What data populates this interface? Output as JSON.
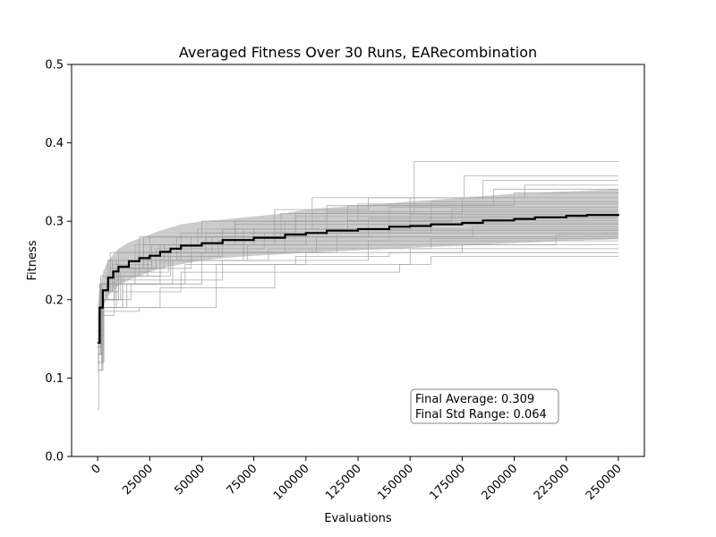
{
  "chart_data": {
    "type": "line",
    "title": "Averaged Fitness Over 30 Runs, EARecombination",
    "xlabel": "Evaluations",
    "ylabel": "Fitness",
    "xlim": [
      -12500,
      262500
    ],
    "ylim": [
      0,
      0.5
    ],
    "xticks": [
      0,
      25000,
      50000,
      75000,
      100000,
      125000,
      150000,
      175000,
      200000,
      225000,
      250000
    ],
    "xtick_labels": [
      "0",
      "25000",
      "50000",
      "75000",
      "100000",
      "125000",
      "150000",
      "175000",
      "200000",
      "225000",
      "250000"
    ],
    "yticks": [
      0.0,
      0.1,
      0.2,
      0.3,
      0.4,
      0.5
    ],
    "ytick_labels": [
      "0.0",
      "0.1",
      "0.2",
      "0.3",
      "0.4",
      "0.5"
    ],
    "xtick_rotation": 45,
    "grid": false,
    "legend": false,
    "average": {
      "x": [
        0,
        1000,
        2500,
        5000,
        7500,
        10000,
        15000,
        20000,
        25000,
        30000,
        35000,
        40000,
        50000,
        60000,
        75000,
        90000,
        100000,
        110000,
        125000,
        140000,
        150000,
        160000,
        175000,
        185000,
        200000,
        210000,
        225000,
        235000,
        250000
      ],
      "y": [
        0.145,
        0.19,
        0.212,
        0.228,
        0.236,
        0.242,
        0.249,
        0.253,
        0.256,
        0.261,
        0.265,
        0.269,
        0.272,
        0.276,
        0.279,
        0.283,
        0.285,
        0.288,
        0.29,
        0.293,
        0.294,
        0.296,
        0.298,
        0.301,
        0.303,
        0.305,
        0.307,
        0.308,
        0.309
      ],
      "color": "#000000"
    },
    "std_band": {
      "x": [
        0,
        1000,
        2500,
        5000,
        10000,
        15000,
        20000,
        25000,
        30000,
        40000,
        50000,
        60000,
        75000,
        90000,
        100000,
        125000,
        150000,
        175000,
        200000,
        225000,
        250000
      ],
      "upper": [
        0.19,
        0.215,
        0.235,
        0.25,
        0.265,
        0.273,
        0.278,
        0.283,
        0.288,
        0.296,
        0.3,
        0.302,
        0.306,
        0.31,
        0.315,
        0.32,
        0.325,
        0.33,
        0.335,
        0.338,
        0.341
      ],
      "lower": [
        0.1,
        0.165,
        0.19,
        0.205,
        0.218,
        0.225,
        0.23,
        0.235,
        0.24,
        0.245,
        0.25,
        0.253,
        0.256,
        0.258,
        0.26,
        0.263,
        0.266,
        0.269,
        0.272,
        0.275,
        0.277
      ],
      "color": "#808080"
    },
    "runs": [
      {
        "final": 0.376,
        "steps": [
          [
            0,
            0.14
          ],
          [
            1500,
            0.21
          ],
          [
            9000,
            0.24
          ],
          [
            26000,
            0.26
          ],
          [
            52000,
            0.28
          ],
          [
            88000,
            0.31
          ],
          [
            152000,
            0.376
          ]
        ]
      },
      {
        "final": 0.358,
        "steps": [
          [
            0,
            0.12
          ],
          [
            2000,
            0.2
          ],
          [
            8000,
            0.235
          ],
          [
            24000,
            0.255
          ],
          [
            60000,
            0.29
          ],
          [
            103000,
            0.33
          ],
          [
            176000,
            0.358
          ]
        ]
      },
      {
        "final": 0.352,
        "steps": [
          [
            0,
            0.13
          ],
          [
            1200,
            0.22
          ],
          [
            7000,
            0.25
          ],
          [
            30000,
            0.27
          ],
          [
            85000,
            0.315
          ],
          [
            130000,
            0.33
          ],
          [
            185000,
            0.352
          ]
        ]
      },
      {
        "final": 0.346,
        "steps": [
          [
            0,
            0.15
          ],
          [
            1800,
            0.22
          ],
          [
            10000,
            0.26
          ],
          [
            40000,
            0.285
          ],
          [
            95000,
            0.31
          ],
          [
            150000,
            0.33
          ],
          [
            205000,
            0.346
          ]
        ]
      },
      {
        "final": 0.341,
        "steps": [
          [
            0,
            0.11
          ],
          [
            2500,
            0.19
          ],
          [
            12000,
            0.23
          ],
          [
            35000,
            0.26
          ],
          [
            70000,
            0.29
          ],
          [
            120000,
            0.32
          ],
          [
            190000,
            0.341
          ]
        ]
      },
      {
        "final": 0.336,
        "steps": [
          [
            0,
            0.14
          ],
          [
            1500,
            0.2
          ],
          [
            9000,
            0.24
          ],
          [
            22000,
            0.28
          ],
          [
            66000,
            0.3
          ],
          [
            110000,
            0.32
          ],
          [
            200000,
            0.336
          ]
        ]
      },
      {
        "final": 0.33,
        "steps": [
          [
            0,
            0.16
          ],
          [
            1000,
            0.22
          ],
          [
            5000,
            0.25
          ],
          [
            18000,
            0.27
          ],
          [
            48000,
            0.29
          ],
          [
            100000,
            0.31
          ],
          [
            175000,
            0.33
          ]
        ]
      },
      {
        "final": 0.325,
        "steps": [
          [
            0,
            0.13
          ],
          [
            2000,
            0.21
          ],
          [
            8000,
            0.24
          ],
          [
            28000,
            0.26
          ],
          [
            55000,
            0.28
          ],
          [
            90000,
            0.3
          ],
          [
            160000,
            0.325
          ]
        ]
      },
      {
        "final": 0.322,
        "steps": [
          [
            0,
            0.15
          ],
          [
            1500,
            0.23
          ],
          [
            6000,
            0.26
          ],
          [
            20000,
            0.28
          ],
          [
            50000,
            0.3
          ],
          [
            125000,
            0.322
          ]
        ]
      },
      {
        "final": 0.318,
        "steps": [
          [
            0,
            0.12
          ],
          [
            3000,
            0.2
          ],
          [
            10000,
            0.24
          ],
          [
            32000,
            0.27
          ],
          [
            75000,
            0.29
          ],
          [
            140000,
            0.318
          ]
        ]
      },
      {
        "final": 0.315,
        "steps": [
          [
            0,
            0.14
          ],
          [
            2000,
            0.21
          ],
          [
            7000,
            0.25
          ],
          [
            25000,
            0.28
          ],
          [
            85000,
            0.3
          ],
          [
            170000,
            0.315
          ]
        ]
      },
      {
        "final": 0.312,
        "steps": [
          [
            0,
            0.16
          ],
          [
            1000,
            0.2
          ],
          [
            4000,
            0.22
          ],
          [
            18000,
            0.25
          ],
          [
            45000,
            0.28
          ],
          [
            110000,
            0.312
          ]
        ]
      },
      {
        "final": 0.309,
        "steps": [
          [
            0,
            0.13
          ],
          [
            1500,
            0.21
          ],
          [
            6000,
            0.24
          ],
          [
            22000,
            0.27
          ],
          [
            60000,
            0.29
          ],
          [
            150000,
            0.309
          ]
        ]
      },
      {
        "final": 0.306,
        "steps": [
          [
            0,
            0.15
          ],
          [
            2500,
            0.22
          ],
          [
            9000,
            0.25
          ],
          [
            38000,
            0.28
          ],
          [
            95000,
            0.306
          ]
        ]
      },
      {
        "final": 0.304,
        "steps": [
          [
            0,
            0.12
          ],
          [
            2000,
            0.19
          ],
          [
            8000,
            0.22
          ],
          [
            30000,
            0.25
          ],
          [
            70000,
            0.28
          ],
          [
            130000,
            0.304
          ]
        ]
      },
      {
        "final": 0.301,
        "steps": [
          [
            0,
            0.14
          ],
          [
            1200,
            0.2
          ],
          [
            5000,
            0.23
          ],
          [
            20000,
            0.26
          ],
          [
            52000,
            0.285
          ],
          [
            120000,
            0.301
          ]
        ]
      },
      {
        "final": 0.298,
        "steps": [
          [
            0,
            0.11
          ],
          [
            2000,
            0.21
          ],
          [
            10000,
            0.24
          ],
          [
            28000,
            0.265
          ],
          [
            80000,
            0.285
          ],
          [
            160000,
            0.298
          ]
        ]
      },
      {
        "final": 0.296,
        "steps": [
          [
            0,
            0.15
          ],
          [
            1500,
            0.21
          ],
          [
            7000,
            0.245
          ],
          [
            26000,
            0.27
          ],
          [
            66000,
            0.296
          ]
        ]
      },
      {
        "final": 0.293,
        "steps": [
          [
            0,
            0.13
          ],
          [
            2500,
            0.2
          ],
          [
            11000,
            0.235
          ],
          [
            34000,
            0.26
          ],
          [
            90000,
            0.28
          ],
          [
            180000,
            0.293
          ]
        ]
      },
      {
        "final": 0.29,
        "steps": [
          [
            0,
            0.16
          ],
          [
            1000,
            0.22
          ],
          [
            6000,
            0.25
          ],
          [
            40000,
            0.27
          ],
          [
            100000,
            0.29
          ]
        ]
      },
      {
        "final": 0.288,
        "steps": [
          [
            0,
            0.12
          ],
          [
            2000,
            0.19
          ],
          [
            9000,
            0.23
          ],
          [
            24000,
            0.255
          ],
          [
            58000,
            0.275
          ],
          [
            140000,
            0.288
          ]
        ]
      },
      {
        "final": 0.285,
        "steps": [
          [
            0,
            0.14
          ],
          [
            1500,
            0.2
          ],
          [
            12000,
            0.22
          ],
          [
            50000,
            0.26
          ],
          [
            115000,
            0.285
          ]
        ]
      },
      {
        "final": 0.283,
        "steps": [
          [
            0,
            0.13
          ],
          [
            3000,
            0.2
          ],
          [
            8000,
            0.23
          ],
          [
            30000,
            0.25
          ],
          [
            72000,
            0.27
          ],
          [
            220000,
            0.283
          ]
        ]
      },
      {
        "final": 0.28,
        "steps": [
          [
            0,
            0.15
          ],
          [
            2000,
            0.21
          ],
          [
            10000,
            0.24
          ],
          [
            45000,
            0.26
          ],
          [
            105000,
            0.28
          ]
        ]
      },
      {
        "final": 0.278,
        "steps": [
          [
            0,
            0.11
          ],
          [
            2500,
            0.19
          ],
          [
            14000,
            0.22
          ],
          [
            36000,
            0.25
          ],
          [
            82000,
            0.265
          ],
          [
            160000,
            0.278
          ]
        ]
      },
      {
        "final": 0.275,
        "steps": [
          [
            0,
            0.12
          ],
          [
            2000,
            0.2
          ],
          [
            9000,
            0.225
          ],
          [
            60000,
            0.25
          ],
          [
            130000,
            0.275
          ]
        ]
      },
      {
        "final": 0.27,
        "steps": [
          [
            0,
            0.14
          ],
          [
            1500,
            0.2
          ],
          [
            16000,
            0.22
          ],
          [
            42000,
            0.245
          ],
          [
            100000,
            0.26
          ],
          [
            175000,
            0.27
          ]
        ]
      },
      {
        "final": 0.265,
        "steps": [
          [
            0,
            0.06
          ],
          [
            500,
            0.18
          ],
          [
            8000,
            0.19
          ],
          [
            30000,
            0.215
          ],
          [
            85000,
            0.245
          ],
          [
            150000,
            0.265
          ]
        ]
      },
      {
        "final": 0.26,
        "steps": [
          [
            0,
            0.12
          ],
          [
            3000,
            0.185
          ],
          [
            20000,
            0.19
          ],
          [
            57000,
            0.245
          ],
          [
            95000,
            0.255
          ],
          [
            140000,
            0.26
          ]
        ]
      },
      {
        "final": 0.255,
        "steps": [
          [
            0,
            0.13
          ],
          [
            2000,
            0.19
          ],
          [
            12000,
            0.21
          ],
          [
            40000,
            0.235
          ],
          [
            145000,
            0.245
          ],
          [
            160000,
            0.255
          ]
        ]
      }
    ],
    "annotation": {
      "line1": "Final Average: 0.309",
      "line2": "Final Std Range: 0.064"
    }
  }
}
